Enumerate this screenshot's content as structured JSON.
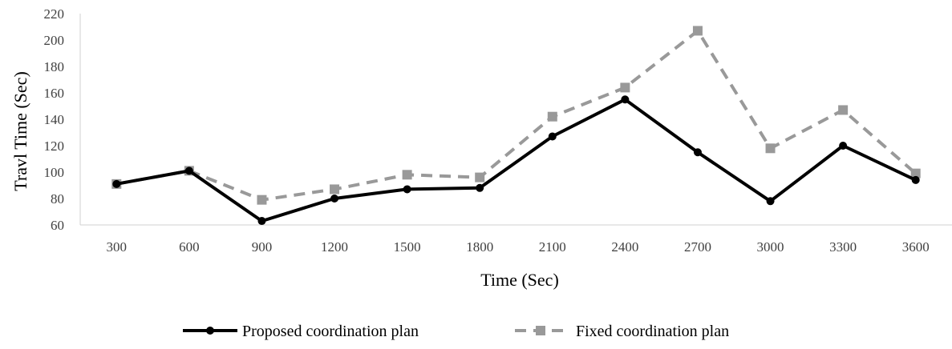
{
  "chart_data": {
    "type": "line",
    "title": "",
    "xlabel": "Time (Sec)",
    "ylabel": "Travl Time (Sec)",
    "categories": [
      "300",
      "600",
      "900",
      "1200",
      "1500",
      "1800",
      "2100",
      "2400",
      "2700",
      "3000",
      "3300",
      "3600"
    ],
    "ylim": [
      60,
      220
    ],
    "yticks": [
      60,
      80,
      100,
      120,
      140,
      160,
      180,
      200,
      220
    ],
    "grid": false,
    "legend": "bottom",
    "series": [
      {
        "name": "Proposed coordination plan",
        "color": "#000000",
        "line_style": "solid",
        "marker": "circle",
        "values": [
          91,
          101,
          63,
          80,
          87,
          88,
          127,
          155,
          115,
          78,
          120,
          94
        ]
      },
      {
        "name": "Fixed coordination plan",
        "color": "#999999",
        "line_style": "dashed",
        "marker": "square",
        "values": [
          91,
          101,
          79,
          87,
          98,
          96,
          142,
          164,
          207,
          118,
          147,
          99
        ]
      }
    ]
  }
}
